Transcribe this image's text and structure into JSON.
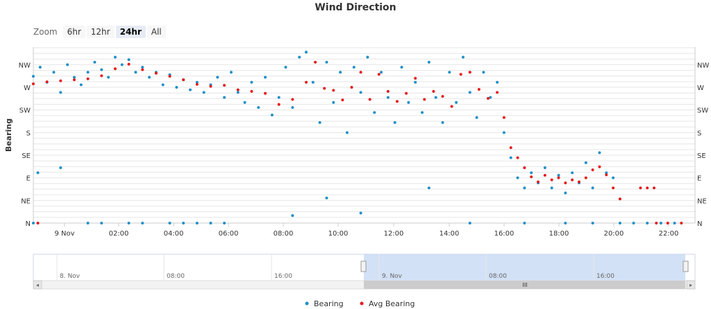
{
  "title": "Wind Direction",
  "zoom": {
    "label": "Zoom",
    "buttons": [
      "6hr",
      "12hr",
      "24hr",
      "All"
    ],
    "active": "24hr"
  },
  "colors": {
    "bearing": "#1f8fc8",
    "avg_bearing": "#e41a1c"
  },
  "chart_data": {
    "type": "scatter",
    "title": "Wind Direction",
    "ylabel": "Bearing",
    "y_ticks": [
      {
        "label": "NW",
        "value": 315
      },
      {
        "label": "W",
        "value": 270
      },
      {
        "label": "SW",
        "value": 225
      },
      {
        "label": "S",
        "value": 180
      },
      {
        "label": "SE",
        "value": 135
      },
      {
        "label": "E",
        "value": 90
      },
      {
        "label": "NE",
        "value": 45
      },
      {
        "label": "N",
        "value": 0
      }
    ],
    "ylim": [
      0,
      350
    ],
    "x_range": [
      "2020-11-08 23:00",
      "2020-11-09 23:15"
    ],
    "x_ticks": [
      "9 Nov",
      "02:00",
      "04:00",
      "06:00",
      "08:00",
      "10:00",
      "12:00",
      "14:00",
      "16:00",
      "18:00",
      "20:00",
      "22:00"
    ],
    "grid": true,
    "legend": "bottom-center",
    "series": [
      {
        "name": "Bearing",
        "points": [
          [
            "23:00",
            292
          ],
          [
            "23:15",
            310
          ],
          [
            "23:30",
            280
          ],
          [
            "23:45",
            300
          ],
          [
            "00:00",
            260
          ],
          [
            "00:15",
            315
          ],
          [
            "00:30",
            290
          ],
          [
            "00:45",
            275
          ],
          [
            "01:00",
            300
          ],
          [
            "01:15",
            320
          ],
          [
            "01:30",
            305
          ],
          [
            "01:45",
            290
          ],
          [
            "02:00",
            330
          ],
          [
            "02:15",
            315
          ],
          [
            "02:30",
            325
          ],
          [
            "02:45",
            300
          ],
          [
            "03:00",
            310
          ],
          [
            "03:15",
            290
          ],
          [
            "03:30",
            300
          ],
          [
            "03:45",
            275
          ],
          [
            "04:00",
            295
          ],
          [
            "04:15",
            270
          ],
          [
            "04:30",
            285
          ],
          [
            "04:45",
            265
          ],
          [
            "05:00",
            280
          ],
          [
            "05:15",
            260
          ],
          [
            "05:30",
            275
          ],
          [
            "05:45",
            290
          ],
          [
            "06:00",
            250
          ],
          [
            "06:15",
            300
          ],
          [
            "06:30",
            260
          ],
          [
            "06:45",
            240
          ],
          [
            "07:00",
            280
          ],
          [
            "07:15",
            230
          ],
          [
            "07:30",
            290
          ],
          [
            "07:45",
            215
          ],
          [
            "08:00",
            250
          ],
          [
            "08:15",
            310
          ],
          [
            "08:30",
            230
          ],
          [
            "08:45",
            330
          ],
          [
            "09:00",
            340
          ],
          [
            "09:15",
            280
          ],
          [
            "09:30",
            200
          ],
          [
            "09:45",
            320
          ],
          [
            "10:00",
            240
          ],
          [
            "10:15",
            300
          ],
          [
            "10:30",
            180
          ],
          [
            "10:45",
            310
          ],
          [
            "11:00",
            260
          ],
          [
            "11:15",
            330
          ],
          [
            "11:30",
            220
          ],
          [
            "11:45",
            300
          ],
          [
            "12:00",
            250
          ],
          [
            "12:15",
            200
          ],
          [
            "12:30",
            310
          ],
          [
            "12:45",
            240
          ],
          [
            "13:00",
            280
          ],
          [
            "13:15",
            220
          ],
          [
            "13:30",
            320
          ],
          [
            "13:45",
            250
          ],
          [
            "14:00",
            200
          ],
          [
            "14:15",
            300
          ],
          [
            "14:30",
            240
          ],
          [
            "14:45",
            330
          ],
          [
            "15:00",
            260
          ],
          [
            "15:15",
            210
          ],
          [
            "15:30",
            300
          ],
          [
            "15:45",
            250
          ],
          [
            "16:00",
            280
          ],
          [
            "16:15",
            180
          ],
          [
            "16:30",
            130
          ],
          [
            "16:45",
            90
          ],
          [
            "17:00",
            70
          ],
          [
            "17:15",
            100
          ],
          [
            "17:30",
            80
          ],
          [
            "17:45",
            110
          ],
          [
            "18:00",
            70
          ],
          [
            "18:15",
            95
          ],
          [
            "18:30",
            60
          ],
          [
            "18:45",
            100
          ],
          [
            "19:00",
            80
          ],
          [
            "19:15",
            120
          ],
          [
            "19:30",
            70
          ],
          [
            "19:45",
            140
          ],
          [
            "20:00",
            100
          ],
          [
            "20:15",
            90
          ],
          [
            "20:30",
            0
          ],
          [
            "21:00",
            0
          ],
          [
            "21:30",
            0
          ],
          [
            "22:00",
            0
          ],
          [
            "22:30",
            0
          ],
          [
            "23:00",
            0
          ],
          [
            "23:10",
            100
          ],
          [
            "01:00",
            0
          ],
          [
            "01:30",
            0
          ],
          [
            "02:30",
            0
          ],
          [
            "03:00",
            0
          ],
          [
            "04:00",
            0
          ],
          [
            "04:30",
            0
          ],
          [
            "05:00",
            0
          ],
          [
            "05:30",
            0
          ],
          [
            "06:00",
            0
          ],
          [
            "08:30",
            15
          ],
          [
            "11:00",
            20
          ],
          [
            "15:00",
            0
          ],
          [
            "17:00",
            0
          ],
          [
            "18:30",
            0
          ],
          [
            "19:30",
            0
          ],
          [
            "00:00",
            110
          ],
          [
            "09:45",
            50
          ],
          [
            "13:30",
            70
          ]
        ]
      },
      {
        "name": "Avg Bearing",
        "points": [
          [
            "23:00",
            277
          ],
          [
            "23:30",
            281
          ],
          [
            "00:00",
            283
          ],
          [
            "00:30",
            285
          ],
          [
            "01:00",
            287
          ],
          [
            "01:30",
            293
          ],
          [
            "02:00",
            307
          ],
          [
            "02:30",
            316
          ],
          [
            "03:00",
            305
          ],
          [
            "03:30",
            298
          ],
          [
            "04:00",
            292
          ],
          [
            "04:30",
            285
          ],
          [
            "05:00",
            276
          ],
          [
            "05:30",
            272
          ],
          [
            "06:00",
            274
          ],
          [
            "06:30",
            265
          ],
          [
            "07:00",
            262
          ],
          [
            "07:30",
            258
          ],
          [
            "08:00",
            236
          ],
          [
            "08:30",
            246
          ],
          [
            "09:00",
            280
          ],
          [
            "09:20",
            320
          ],
          [
            "09:40",
            268
          ],
          [
            "10:00",
            264
          ],
          [
            "10:20",
            245
          ],
          [
            "10:40",
            270
          ],
          [
            "11:00",
            300
          ],
          [
            "11:20",
            246
          ],
          [
            "11:40",
            296
          ],
          [
            "12:00",
            262
          ],
          [
            "12:20",
            242
          ],
          [
            "12:40",
            258
          ],
          [
            "13:00",
            288
          ],
          [
            "13:20",
            246
          ],
          [
            "13:40",
            262
          ],
          [
            "14:00",
            252
          ],
          [
            "14:20",
            232
          ],
          [
            "14:40",
            296
          ],
          [
            "15:00",
            300
          ],
          [
            "15:20",
            266
          ],
          [
            "15:40",
            248
          ],
          [
            "16:00",
            260
          ],
          [
            "16:15",
            210
          ],
          [
            "16:30",
            150
          ],
          [
            "16:45",
            130
          ],
          [
            "17:00",
            110
          ],
          [
            "17:15",
            92
          ],
          [
            "17:30",
            82
          ],
          [
            "17:45",
            95
          ],
          [
            "18:00",
            86
          ],
          [
            "18:15",
            90
          ],
          [
            "18:30",
            80
          ],
          [
            "18:45",
            86
          ],
          [
            "19:00",
            82
          ],
          [
            "19:15",
            90
          ],
          [
            "19:30",
            106
          ],
          [
            "19:45",
            112
          ],
          [
            "20:00",
            96
          ],
          [
            "20:15",
            70
          ],
          [
            "20:30",
            48
          ],
          [
            "21:15",
            70
          ],
          [
            "21:30",
            70
          ],
          [
            "21:45",
            70
          ],
          [
            "21:50",
            0
          ],
          [
            "22:15",
            0
          ],
          [
            "22:45",
            0
          ],
          [
            "23:10",
            0
          ]
        ]
      }
    ]
  },
  "navigator": {
    "labels": [
      "8. Nov",
      "08:00",
      "16:00",
      "9. Nov",
      "08:00",
      "16:00"
    ],
    "scroll_label": "III"
  },
  "legend": {
    "items": [
      {
        "name": "Bearing"
      },
      {
        "name": "Avg Bearing"
      }
    ]
  }
}
